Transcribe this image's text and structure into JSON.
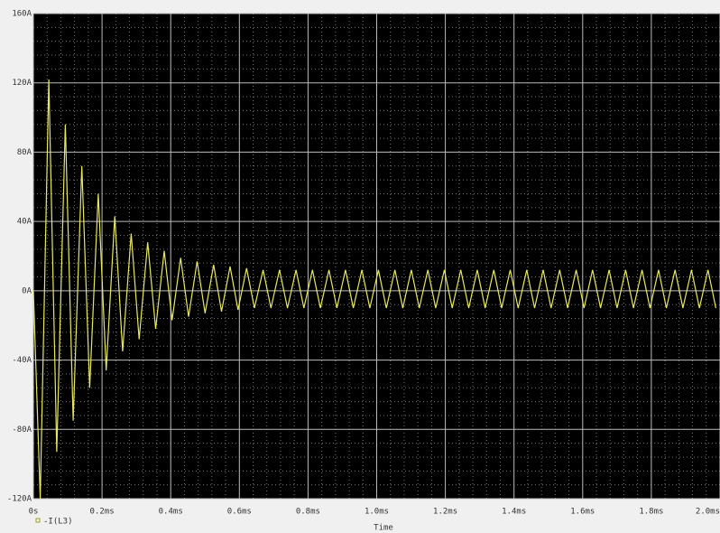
{
  "chart_data": {
    "type": "line",
    "xlabel": "Time",
    "x": [
      0,
      0.02,
      0.045,
      0.068,
      0.093,
      0.116,
      0.141,
      0.164,
      0.189,
      0.212,
      0.237,
      0.26,
      0.285,
      0.308,
      0.333,
      0.356,
      0.381,
      0.404,
      0.429,
      0.452,
      0.477,
      0.5,
      0.525,
      0.548,
      0.573,
      0.596,
      0.621,
      0.644,
      0.669,
      0.692,
      0.717,
      0.74,
      0.765,
      0.788,
      0.813,
      0.836,
      0.861,
      0.884,
      0.909,
      0.932,
      0.957,
      0.98,
      1.005,
      1.028,
      1.053,
      1.076,
      1.101,
      1.124,
      1.149,
      1.172,
      1.197,
      1.22,
      1.245,
      1.268,
      1.293,
      1.316,
      1.341,
      1.364,
      1.389,
      1.412,
      1.437,
      1.46,
      1.485,
      1.508,
      1.533,
      1.556,
      1.581,
      1.604,
      1.629,
      1.652,
      1.677,
      1.7,
      1.725,
      1.748,
      1.773,
      1.796,
      1.821,
      1.844,
      1.869,
      1.892,
      1.917,
      1.94,
      1.965,
      1.988
    ],
    "series": [
      {
        "name": "-I(L3)",
        "color": "#e8e860",
        "values": [
          0,
          -120,
          122,
          -93,
          96,
          -75,
          72,
          -56,
          56,
          -46,
          43,
          -35,
          33,
          -28,
          28,
          -22,
          23,
          -17,
          19,
          -15,
          17,
          -13,
          15,
          -12,
          14,
          -11,
          13,
          -10,
          12,
          -10,
          12,
          -10,
          12,
          -10,
          12,
          -10,
          12,
          -10,
          12,
          -10,
          12,
          -10,
          12,
          -10,
          12,
          -10,
          12,
          -10,
          12,
          -10,
          12,
          -10,
          12,
          -10,
          12,
          -10,
          12,
          -10,
          12,
          -10,
          12,
          -10,
          12,
          -10,
          12,
          -10,
          12,
          -10,
          12,
          -10,
          12,
          -10,
          12,
          -10,
          12,
          -10,
          12,
          -10,
          12,
          -10,
          12,
          -10,
          12,
          -10
        ]
      }
    ],
    "xlim": [
      0,
      2.0
    ],
    "xticks": [
      {
        "value": 0,
        "label": "0s"
      },
      {
        "value": 0.2,
        "label": "0.2ms"
      },
      {
        "value": 0.4,
        "label": "0.4ms"
      },
      {
        "value": 0.6,
        "label": "0.6ms"
      },
      {
        "value": 0.8,
        "label": "0.8ms"
      },
      {
        "value": 1.0,
        "label": "1.0ms"
      },
      {
        "value": 1.2,
        "label": "1.2ms"
      },
      {
        "value": 1.4,
        "label": "1.4ms"
      },
      {
        "value": 1.6,
        "label": "1.6ms"
      },
      {
        "value": 1.8,
        "label": "1.8ms"
      },
      {
        "value": 2.0,
        "label": "2.0ms"
      }
    ],
    "ylim": [
      -120,
      160
    ],
    "yticks": [
      {
        "value": -120,
        "label": "-120A"
      },
      {
        "value": -80,
        "label": "-80A"
      },
      {
        "value": -40,
        "label": "-40A"
      },
      {
        "value": 0,
        "label": "0A"
      },
      {
        "value": 40,
        "label": "40A"
      },
      {
        "value": 80,
        "label": "80A"
      },
      {
        "value": 120,
        "label": "120A"
      },
      {
        "value": 160,
        "label": "160A"
      }
    ],
    "grid": true
  }
}
